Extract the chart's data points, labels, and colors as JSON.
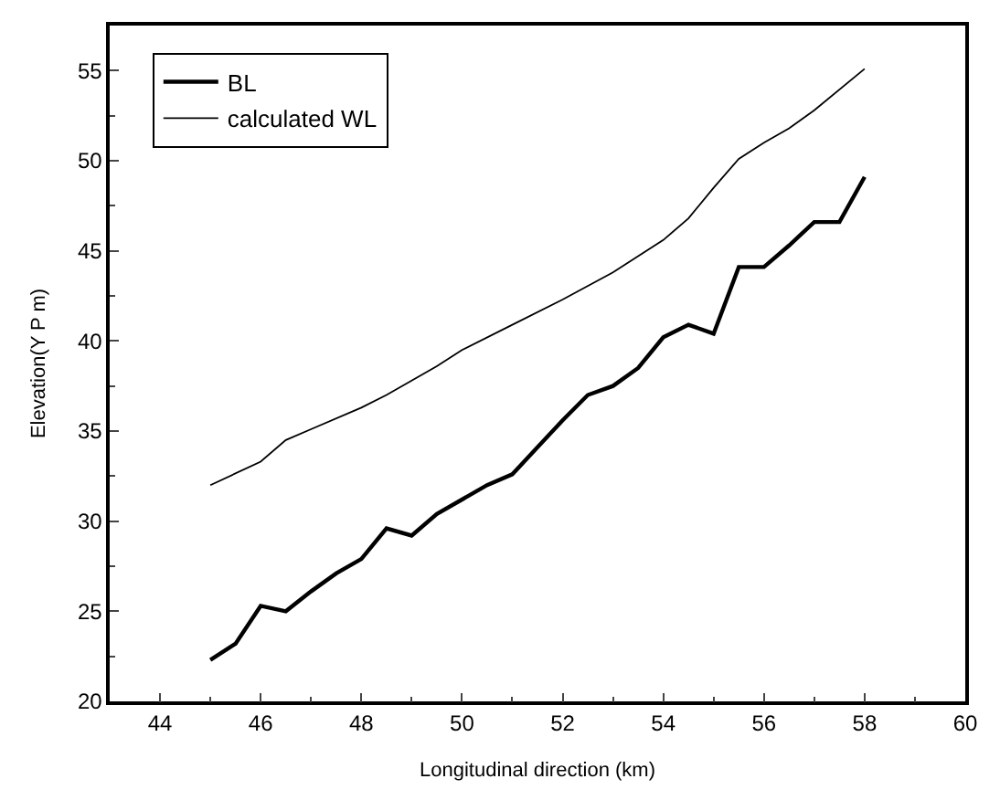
{
  "chart_data": {
    "type": "line",
    "xlabel": "Longitudinal direction (km)",
    "ylabel": "Elevation(Y P m)",
    "xlim": [
      43,
      60
    ],
    "xticks": [
      44,
      46,
      48,
      50,
      52,
      54,
      56,
      58,
      60
    ],
    "ylim": [
      20,
      57.5
    ],
    "yticks": [
      20,
      25,
      30,
      35,
      40,
      45,
      50,
      55
    ],
    "legend": "top left",
    "marker": "none",
    "series": [
      {
        "name": "BL",
        "color": "#000000",
        "x": [
          45,
          45.5,
          46,
          46.5,
          47,
          47.5,
          48,
          48.5,
          49,
          49.5,
          50,
          50.5,
          51,
          51.5,
          52,
          52.5,
          53,
          53.5,
          54,
          54.5,
          55,
          55.5,
          56,
          56.5,
          57,
          57.5,
          58
        ],
        "values": [
          22.3,
          23.2,
          25.3,
          25.0,
          26.1,
          27.1,
          27.9,
          29.6,
          29.2,
          30.4,
          31.2,
          32.0,
          32.6,
          34.1,
          35.6,
          37.0,
          37.5,
          38.5,
          40.2,
          40.9,
          40.4,
          44.1,
          44.1,
          45.3,
          46.6,
          46.6,
          49.1
        ]
      },
      {
        "name": "calculated WL",
        "color": "#000000",
        "x": [
          45,
          46,
          46.5,
          47,
          48,
          48.5,
          49,
          49.5,
          50,
          51,
          52,
          53,
          54,
          54.5,
          55,
          55.5,
          56,
          56.5,
          57,
          58
        ],
        "values": [
          32.0,
          33.3,
          34.5,
          35.1,
          36.3,
          37.0,
          37.8,
          38.6,
          39.5,
          40.9,
          42.3,
          43.8,
          45.6,
          46.8,
          48.5,
          50.1,
          51.0,
          51.8,
          52.8,
          55.1
        ]
      }
    ]
  }
}
